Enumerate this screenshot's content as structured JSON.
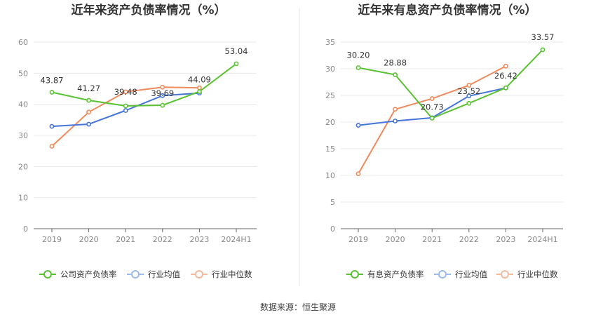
{
  "source_text": "数据来源：恒生聚源",
  "chart_data": [
    {
      "type": "line",
      "title": "近年来资产负债率情况（%）",
      "categories": [
        "2019",
        "2020",
        "2021",
        "2022",
        "2023",
        "2024H1"
      ],
      "ylim": [
        0,
        60
      ],
      "yticks": [
        0,
        10,
        20,
        30,
        40,
        50,
        60
      ],
      "series": [
        {
          "name": "公司资产负债率",
          "color": "#5ac232",
          "values": [
            43.87,
            41.27,
            39.48,
            39.69,
            44.09,
            53.04
          ]
        },
        {
          "name": "行业均值",
          "color": "#4575d8",
          "values": [
            32.9,
            33.6,
            38.0,
            42.8,
            43.6,
            null
          ]
        },
        {
          "name": "行业中位数",
          "color": "#f08a5c",
          "values": [
            26.5,
            37.5,
            44.0,
            45.5,
            45.3,
            null
          ]
        }
      ],
      "data_labels": [
        "43.87",
        "41.27",
        "39.48",
        "39.69",
        "44.09",
        "53.04"
      ]
    },
    {
      "type": "line",
      "title": "近年来有息资产负债率情况（%）",
      "categories": [
        "2019",
        "2020",
        "2021",
        "2022",
        "2023",
        "2024H1"
      ],
      "ylim": [
        0,
        35
      ],
      "yticks": [
        0,
        5,
        10,
        15,
        20,
        25,
        30,
        35
      ],
      "series": [
        {
          "name": "有息资产负债率",
          "color": "#5ac232",
          "values": [
            30.2,
            28.88,
            20.73,
            23.52,
            26.42,
            33.57
          ]
        },
        {
          "name": "行业均值",
          "color": "#4575d8",
          "values": [
            19.4,
            20.2,
            20.8,
            24.9,
            26.4,
            null
          ]
        },
        {
          "name": "行业中位数",
          "color": "#f08a5c",
          "values": [
            10.3,
            22.4,
            24.4,
            26.9,
            30.5,
            null
          ]
        }
      ],
      "data_labels": [
        "30.20",
        "28.88",
        "20.73",
        "23.52",
        "26.42",
        "33.57"
      ]
    }
  ]
}
